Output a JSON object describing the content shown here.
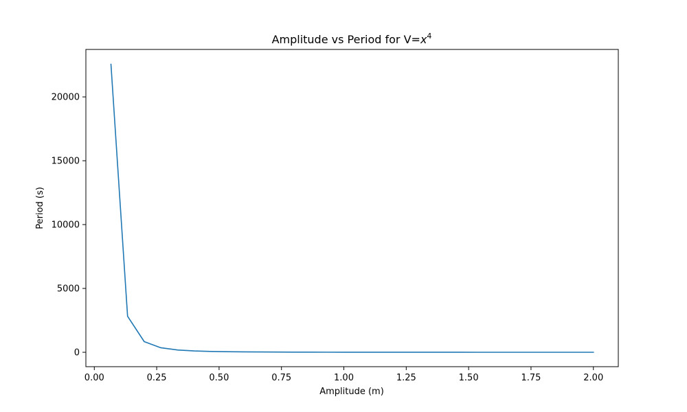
{
  "chart_data": {
    "type": "line",
    "title": "Amplitude vs Period for V=",
    "title_math_var": "x",
    "title_math_exp": "4",
    "xlabel": "Amplitude (m)",
    "ylabel": "Period (s)",
    "xlim": [
      -0.0338,
      2.0998
    ],
    "ylim": [
      -1128,
      23716
    ],
    "xticks": [
      {
        "value": 0.0,
        "label": "0.00"
      },
      {
        "value": 0.25,
        "label": "0.25"
      },
      {
        "value": 0.5,
        "label": "0.50"
      },
      {
        "value": 0.75,
        "label": "0.75"
      },
      {
        "value": 1.0,
        "label": "1.00"
      },
      {
        "value": 1.25,
        "label": "1.25"
      },
      {
        "value": 1.5,
        "label": "1.50"
      },
      {
        "value": 1.75,
        "label": "1.75"
      },
      {
        "value": 2.0,
        "label": "2.00"
      }
    ],
    "yticks": [
      {
        "value": 0,
        "label": "0"
      },
      {
        "value": 5000,
        "label": "5000"
      },
      {
        "value": 10000,
        "label": "10000"
      },
      {
        "value": 15000,
        "label": "15000"
      },
      {
        "value": 20000,
        "label": "20000"
      }
    ],
    "grid": false,
    "series": [
      {
        "color": "#1f77b4",
        "x": [
          0.0667,
          0.1333,
          0.2,
          0.2667,
          0.3333,
          0.4,
          0.4667,
          0.5333,
          0.6,
          0.6667,
          0.7333,
          0.8,
          0.8667,
          0.9333,
          1.0,
          1.0667,
          1.1333,
          1.2,
          1.2667,
          1.3333,
          1.4,
          1.4667,
          1.5333,
          1.6,
          1.6667,
          1.7333,
          1.8,
          1.8667,
          1.9333,
          2.0
        ],
        "y": [
          22555,
          2819,
          835,
          352,
          180,
          104,
          66,
          44,
          31,
          23,
          17,
          13,
          10,
          8,
          6.7,
          5.6,
          4.6,
          3.9,
          3.3,
          2.8,
          2.4,
          2.1,
          1.8,
          1.6,
          1.4,
          1.3,
          1.1,
          1.0,
          0.9,
          0.8
        ]
      }
    ]
  }
}
